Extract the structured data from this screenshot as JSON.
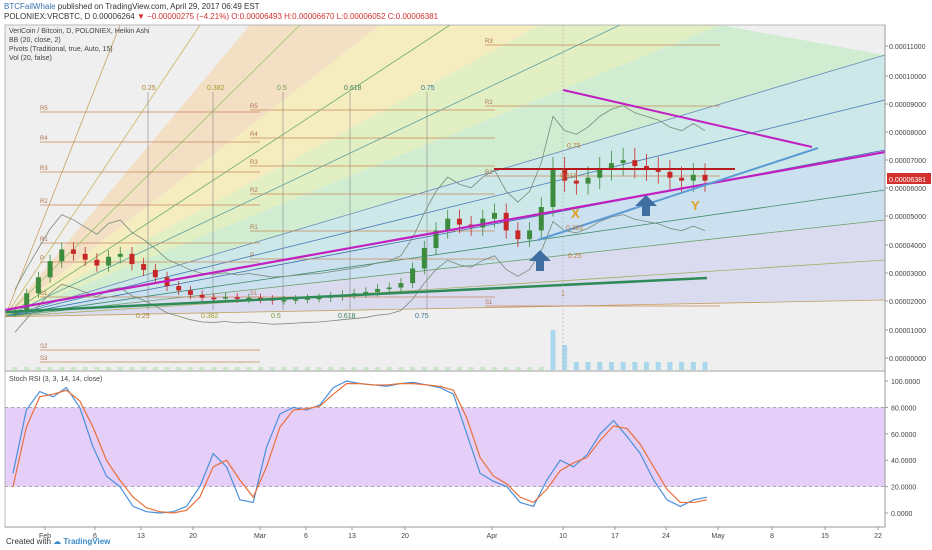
{
  "header": {
    "author": "BTCFailWhale",
    "published": " published on TradingView.com, April 29, 2017 06:49 EST",
    "symbol": "POLONIEX:VRCBTC, D",
    "last": "0.00006264",
    "change": "−0.00000275 (−4.21%)",
    "ohlc": "O:0.00006493 H:0.00006670 L:0.00006052 C:0.00006381"
  },
  "legend": {
    "line1": "VeriCoin / Bitcoin, D, POLONIEX, Heikin Ashi",
    "line2": "BB (20, close, 2)",
    "line3": "Pivots (Traditional, true, Auto, 15)",
    "line4": "Vol (20, false)",
    "stoch": "Stoch RSI (3, 3, 14, 14, close)"
  },
  "footer": {
    "created": "Created with",
    "brand": "TradingView"
  },
  "colors": {
    "up": "#3d8b3d",
    "down": "#c62828",
    "magenta": "#c21fc2",
    "trendGreen": "#2e8b57",
    "blueLine": "#5b9bd5",
    "kLine": "#4a90d9",
    "dLine": "#e8703a",
    "stochBand": "#e1c6f7"
  },
  "chart_data": [
    {
      "type": "candlestick",
      "title": "VeriCoin / Bitcoin, D, POLONIEX, Heikin Ashi",
      "x_tick_labels": [
        "Feb",
        "6",
        "13",
        "20",
        "Mar",
        "6",
        "13",
        "20",
        "Apr",
        "10",
        "17",
        "24",
        "May",
        "8",
        "15",
        "22"
      ],
      "y_tick_labels": [
        "0.00011000",
        "0.00010000",
        "0.00009000",
        "0.00008000",
        "0.00007000",
        "0.00006381",
        "0.00006000",
        "0.00005000",
        "0.00004000",
        "0.00003000",
        "0.00002000",
        "0.00001000",
        "0.00000000"
      ],
      "ylim": [
        0,
        0.000115
      ],
      "last_price": 6.381e-05,
      "gann_fan_labels": [
        "0.25",
        "0.382",
        "0.5",
        "0.618",
        "0.75"
      ],
      "pivot_labels": [
        "R5",
        "R4",
        "R3",
        "R2",
        "R1",
        "P",
        "S1",
        "S2",
        "S3"
      ],
      "candle_close_path": [
        1.95e-05,
        2.55e-05,
        3.1e-05,
        3.65e-05,
        4.05e-05,
        3.9e-05,
        3.7e-05,
        3.5e-05,
        3.8e-05,
        3.9e-05,
        3.55e-05,
        3.35e-05,
        3.1e-05,
        2.8e-05,
        2.65e-05,
        2.5e-05,
        2.4e-05,
        2.38e-05,
        2.42e-05,
        2.36e-05,
        2.4e-05,
        2.35e-05,
        2.3e-05,
        2.32e-05,
        2.35e-05,
        2.38e-05,
        2.4e-05,
        2.45e-05,
        2.5e-05,
        2.55e-05,
        2.6e-05,
        2.7e-05,
        2.75e-05,
        2.9e-05,
        3.4e-05,
        4.1e-05,
        4.7e-05,
        5.1e-05,
        4.9e-05,
        4.8e-05,
        5.1e-05,
        5.3e-05,
        4.7e-05,
        4.4e-05,
        4.7e-05,
        5.5e-05,
        6.8e-05,
        6.4e-05,
        6.3e-05,
        6.5e-05,
        6.8e-05,
        7e-05,
        7.1e-05,
        6.9e-05,
        6.8e-05,
        6.7e-05,
        6.5e-05,
        6.4e-05,
        6.6e-05,
        6.4e-05
      ]
    },
    {
      "type": "line",
      "title": "Stoch RSI (3, 3, 14, 14, close)",
      "y_tick_labels": [
        "100.0000",
        "80.0000",
        "60.0000",
        "40.0000",
        "20.0000",
        "0.0000"
      ],
      "ylim": [
        0,
        100
      ],
      "bands": [
        20,
        80
      ],
      "series": [
        {
          "name": "K",
          "values": [
            30,
            78,
            92,
            88,
            95,
            80,
            50,
            28,
            20,
            5,
            1,
            0,
            1,
            5,
            20,
            45,
            35,
            10,
            8,
            50,
            75,
            80,
            78,
            82,
            95,
            100,
            98,
            97,
            96,
            98,
            99,
            97,
            95,
            90,
            60,
            30,
            24,
            20,
            8,
            5,
            25,
            40,
            35,
            44,
            60,
            70,
            58,
            45,
            25,
            10,
            5,
            10,
            12
          ]
        },
        {
          "name": "D",
          "values": [
            20,
            65,
            88,
            90,
            93,
            85,
            65,
            40,
            25,
            12,
            4,
            1,
            0,
            2,
            12,
            35,
            40,
            25,
            12,
            35,
            65,
            78,
            79,
            81,
            90,
            98,
            98,
            97,
            97,
            98,
            98,
            97,
            96,
            93,
            72,
            42,
            28,
            22,
            12,
            8,
            18,
            32,
            38,
            42,
            55,
            66,
            64,
            52,
            35,
            18,
            8,
            8,
            10
          ]
        }
      ]
    }
  ]
}
